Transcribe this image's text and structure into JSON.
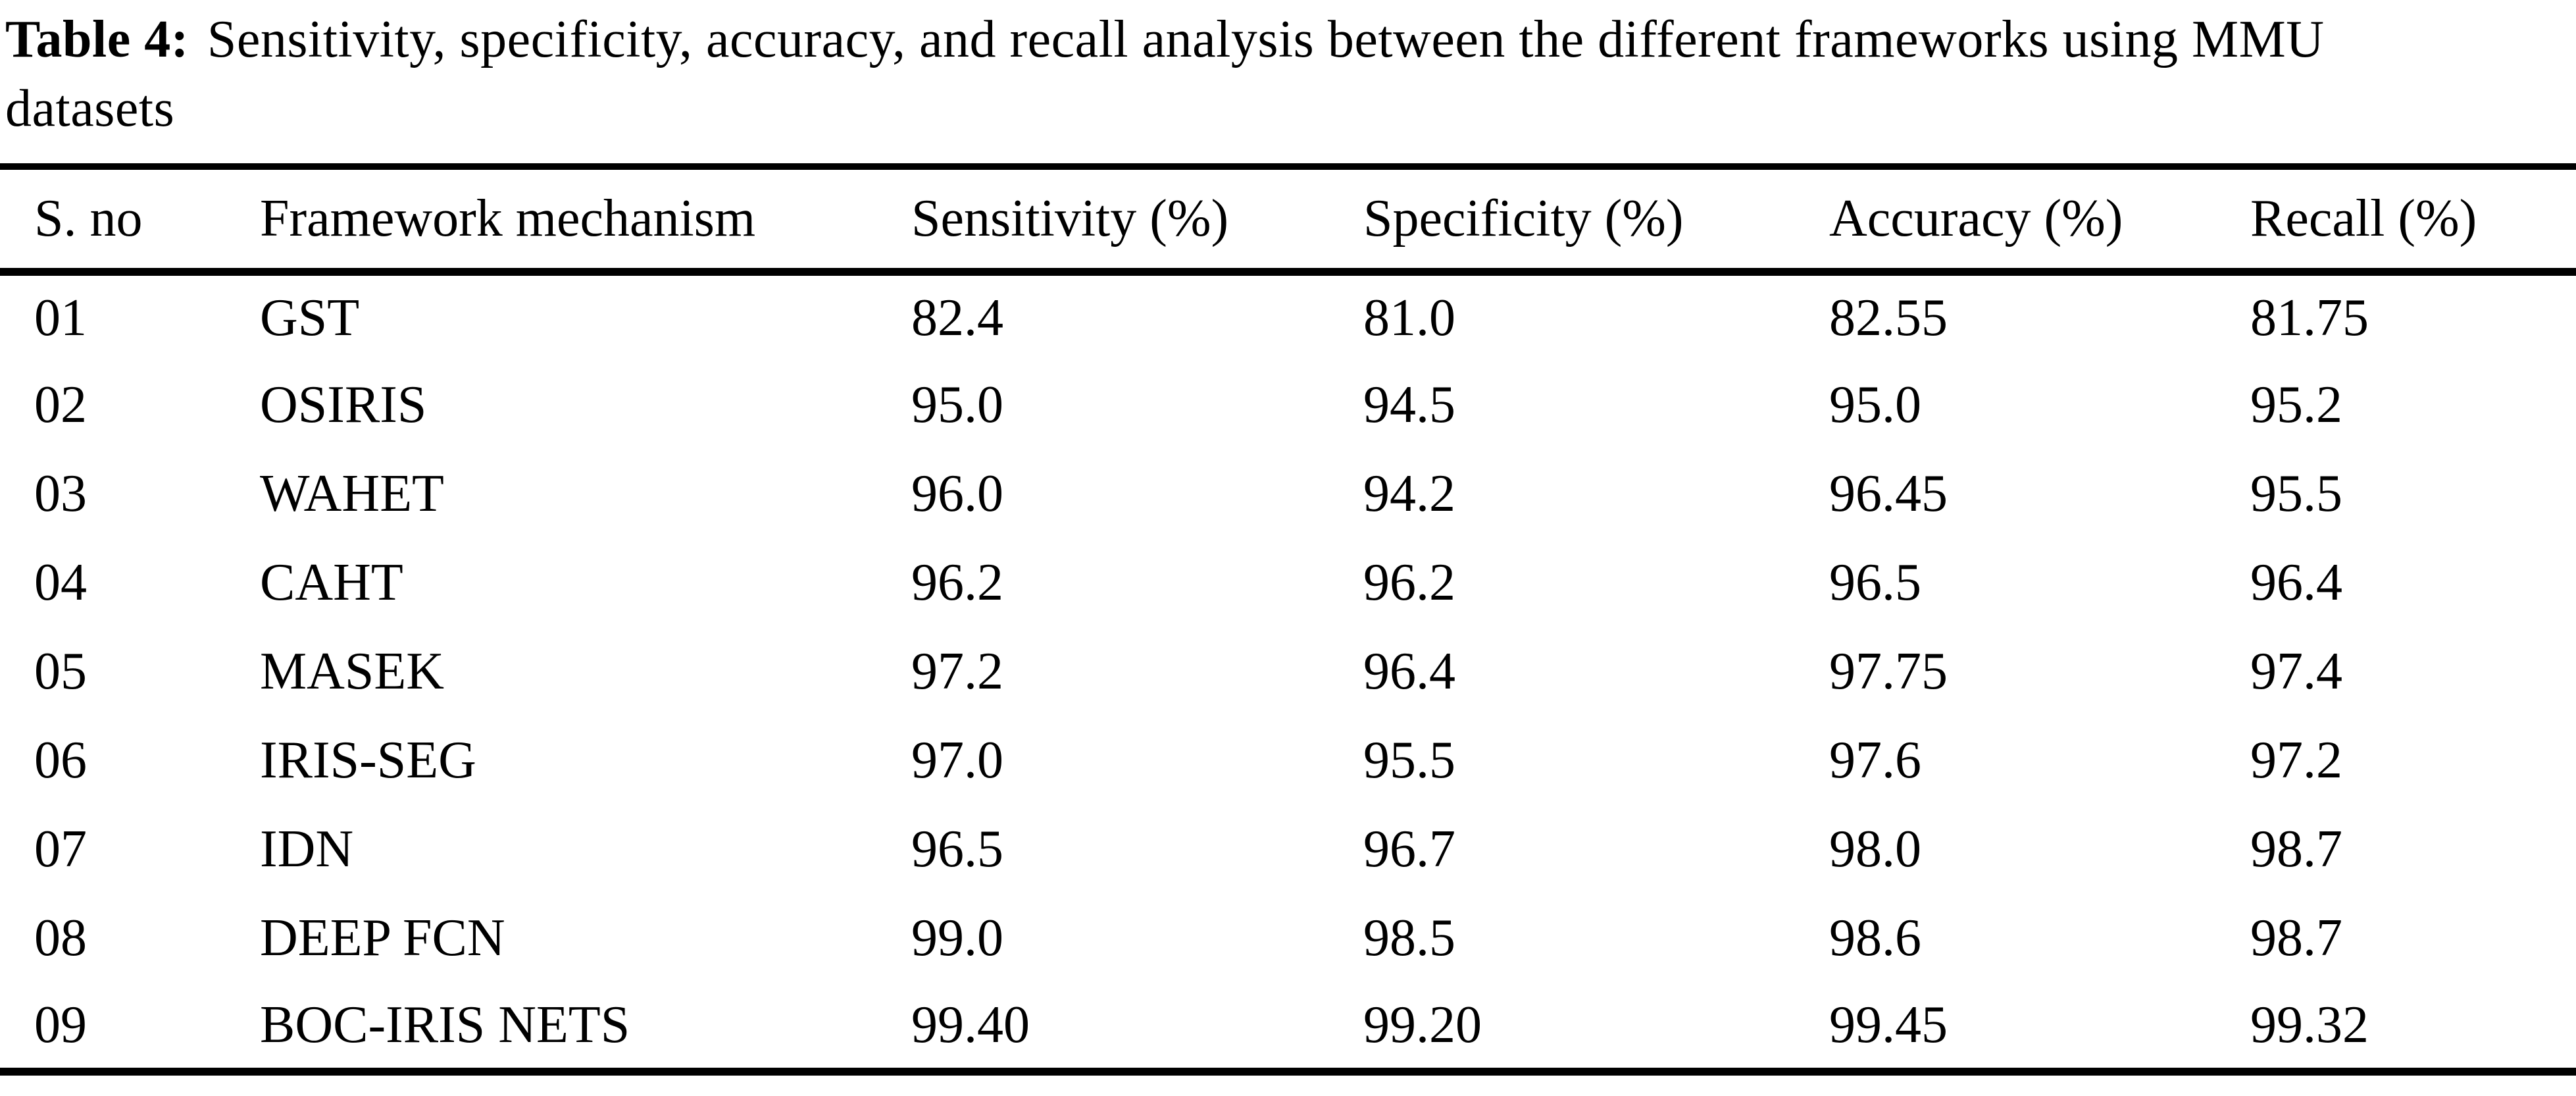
{
  "caption": {
    "label": "Table 4:",
    "line1": "Sensitivity, specificity, accuracy, and recall analysis between the different frameworks using MMU",
    "line2": "datasets"
  },
  "table": {
    "columns": [
      "S. no",
      "Framework mechanism",
      "Sensitivity (%)",
      "Specificity (%)",
      "Accuracy (%)",
      "Recall (%)"
    ],
    "rows": [
      [
        "01",
        "GST",
        "82.4",
        "81.0",
        "82.55",
        "81.75"
      ],
      [
        "02",
        "OSIRIS",
        "95.0",
        "94.5",
        "95.0",
        "95.2"
      ],
      [
        "03",
        "WAHET",
        "96.0",
        "94.2",
        "96.45",
        "95.5"
      ],
      [
        "04",
        "CAHT",
        "96.2",
        "96.2",
        "96.5",
        "96.4"
      ],
      [
        "05",
        "MASEK",
        "97.2",
        "96.4",
        "97.75",
        "97.4"
      ],
      [
        "06",
        "IRIS-SEG",
        "97.0",
        "95.5",
        "97.6",
        "97.2"
      ],
      [
        "07",
        "IDN",
        "96.5",
        "96.7",
        "98.0",
        "98.7"
      ],
      [
        "08",
        "DEEP FCN",
        "99.0",
        "98.5",
        "98.6",
        "98.7"
      ],
      [
        "09",
        "BOC-IRIS NETS",
        "99.40",
        "99.20",
        "99.45",
        "99.32"
      ]
    ]
  }
}
